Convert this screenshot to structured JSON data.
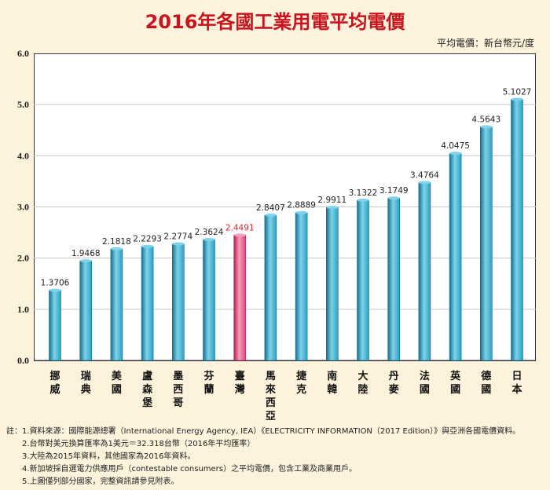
{
  "title": "2016年各國工業用電平均電價",
  "unit_label": "平均電價：新台幣元/度",
  "chart_data": {
    "type": "bar",
    "title": "2016年各國工業用電平均電價",
    "ylabel": "平均電價：新台幣元/度",
    "xlabel": "",
    "ylim": [
      0,
      6
    ],
    "yticks": [
      "0.0",
      "1.0",
      "2.0",
      "3.0",
      "4.0",
      "5.0",
      "6.0"
    ],
    "grid": true,
    "categories": [
      "挪威",
      "瑞典",
      "美國",
      "盧森堡",
      "墨西哥",
      "芬蘭",
      "臺灣",
      "馬來西亞",
      "捷克",
      "南韓",
      "大陸",
      "丹麥",
      "法國",
      "英國",
      "德國",
      "日本"
    ],
    "values": [
      1.3706,
      1.9468,
      2.1818,
      2.2293,
      2.2774,
      2.3624,
      2.4491,
      2.8407,
      2.8889,
      2.9911,
      3.1322,
      3.1749,
      3.4764,
      4.0475,
      4.5643,
      5.1027
    ],
    "value_labels": [
      "1.3706",
      "1.9468",
      "2.1818",
      "2.2293",
      "2.2774",
      "2.3624",
      "2.4491",
      "2.8407",
      "2.8889",
      "2.9911",
      "3.1322",
      "3.1749",
      "3.4764",
      "4.0475",
      "4.5643",
      "5.1027"
    ],
    "highlight_category": "臺灣",
    "colors": {
      "bar": "#2aa0c3",
      "bar_light": "#7fd3ea",
      "bar_dark": "#15708f",
      "highlight": "#e8457a",
      "highlight_light": "#f7a0bd",
      "highlight_dark": "#b21f52",
      "highlight_label": "#e01f26",
      "title": "#c9141e",
      "grid": "#c8c8c8",
      "background": "#fdf3dc"
    }
  },
  "notes_prefix": "註：",
  "notes": [
    "1.資料來源：國際能源總署（International Energy Agency, IEA）《ELECTRICITY INFORMATION（2017 Edition）》與亞洲各國電價資料。",
    "2.台幣對美元換算匯率為1美元＝32.318台幣（2016年平均匯率）",
    "3.大陸為2015年資料，其他國家為2016年資料。",
    "4.新加坡採自選電力供應用戶（contestable consumers）之平均電價，包含工業及商業用戶。",
    "5.上圖僅列部分國家，完整資訊請參見附表。"
  ]
}
